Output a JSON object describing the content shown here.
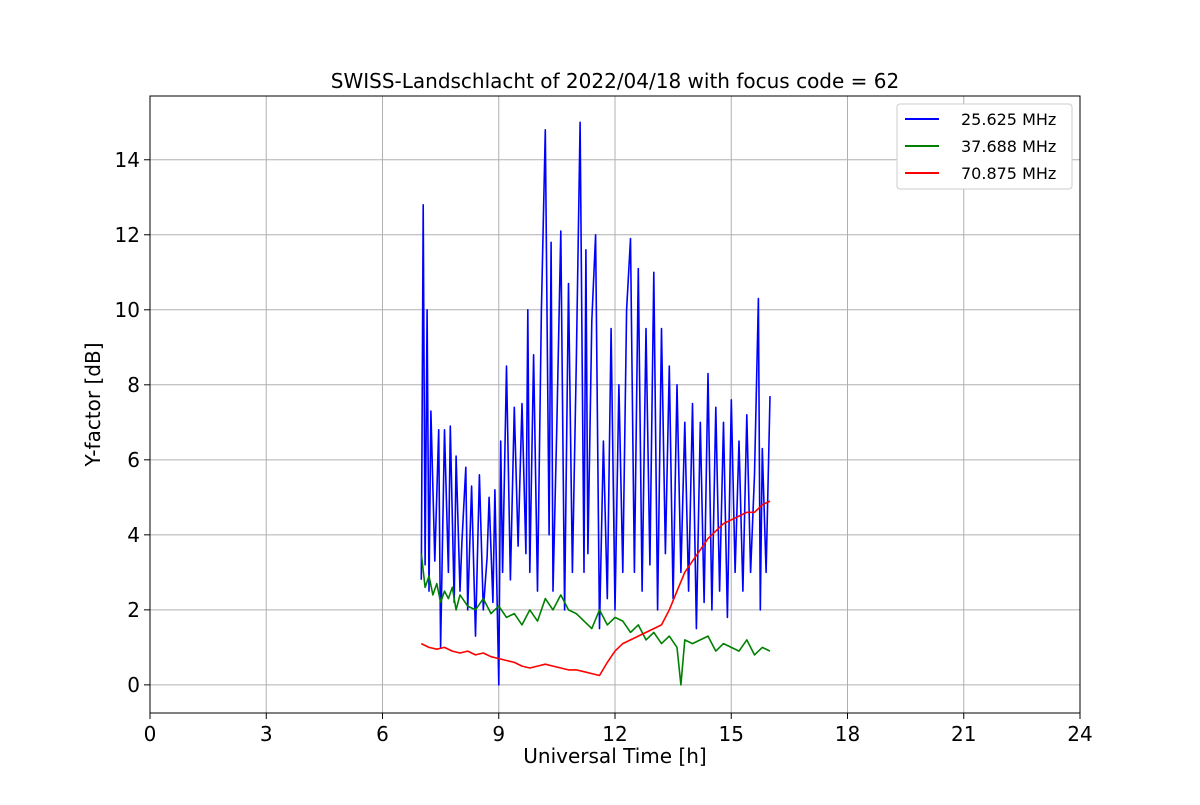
{
  "chart_data": {
    "type": "line",
    "title": "SWISS-Landschlacht of 2022/04/18 with focus code = 62",
    "xlabel": "Universal Time [h]",
    "ylabel": "Y-factor [dB]",
    "xlim": [
      0,
      24
    ],
    "ylim": [
      -0.75,
      15.7
    ],
    "x_ticks": [
      0,
      3,
      6,
      9,
      12,
      15,
      18,
      21,
      24
    ],
    "y_ticks": [
      0,
      2,
      4,
      6,
      8,
      10,
      12,
      14
    ],
    "grid": true,
    "legend_position": "top-right",
    "series": [
      {
        "name": "25.625 MHz",
        "color": "#0000ff",
        "x": [
          7.0,
          7.05,
          7.1,
          7.15,
          7.2,
          7.25,
          7.35,
          7.45,
          7.5,
          7.6,
          7.7,
          7.75,
          7.85,
          7.9,
          8.0,
          8.05,
          8.15,
          8.2,
          8.3,
          8.4,
          8.5,
          8.6,
          8.7,
          8.75,
          8.85,
          8.9,
          9.0,
          9.05,
          9.1,
          9.2,
          9.3,
          9.4,
          9.5,
          9.6,
          9.7,
          9.75,
          9.8,
          9.9,
          10.0,
          10.1,
          10.2,
          10.3,
          10.35,
          10.4,
          10.5,
          10.6,
          10.7,
          10.8,
          10.9,
          11.0,
          11.1,
          11.2,
          11.25,
          11.3,
          11.4,
          11.5,
          11.6,
          11.7,
          11.8,
          11.9,
          12.0,
          12.1,
          12.2,
          12.3,
          12.4,
          12.5,
          12.6,
          12.7,
          12.8,
          12.9,
          13.0,
          13.1,
          13.2,
          13.3,
          13.4,
          13.5,
          13.6,
          13.7,
          13.8,
          13.9,
          14.0,
          14.1,
          14.2,
          14.3,
          14.4,
          14.5,
          14.6,
          14.7,
          14.8,
          14.9,
          15.0,
          15.1,
          15.2,
          15.3,
          15.4,
          15.5,
          15.6,
          15.7,
          15.75,
          15.8,
          15.9,
          16.0
        ],
        "values": [
          2.8,
          12.8,
          3.2,
          10.0,
          2.5,
          7.3,
          3.3,
          6.8,
          1.0,
          6.8,
          3.0,
          6.9,
          2.2,
          6.1,
          2.5,
          3.8,
          5.8,
          2.0,
          5.3,
          1.3,
          5.6,
          2.0,
          3.4,
          5.0,
          2.2,
          5.2,
          0.0,
          6.5,
          3.0,
          8.5,
          2.8,
          7.4,
          3.7,
          7.5,
          3.5,
          10.0,
          3.0,
          8.8,
          2.5,
          10.0,
          14.8,
          4.0,
          11.8,
          2.5,
          7.0,
          12.1,
          2.0,
          10.7,
          3.0,
          8.6,
          15.0,
          3.0,
          11.6,
          3.5,
          9.7,
          12.0,
          1.5,
          6.5,
          2.3,
          9.5,
          2.0,
          8.0,
          3.0,
          10.0,
          11.9,
          3.0,
          11.1,
          2.5,
          9.5,
          3.2,
          11.0,
          2.0,
          9.5,
          3.5,
          8.5,
          2.3,
          8.0,
          3.0,
          7.0,
          2.5,
          7.5,
          1.5,
          7.0,
          2.2,
          8.3,
          2.0,
          7.4,
          2.5,
          7.0,
          1.8,
          7.6,
          3.0,
          6.5,
          2.5,
          7.2,
          3.0,
          5.6,
          10.3,
          2.0,
          6.3,
          3.0,
          7.7
        ]
      },
      {
        "name": "37.688 MHz",
        "color": "#008000",
        "x": [
          7.0,
          7.1,
          7.2,
          7.3,
          7.4,
          7.5,
          7.6,
          7.7,
          7.8,
          7.9,
          8.0,
          8.2,
          8.4,
          8.6,
          8.8,
          9.0,
          9.2,
          9.4,
          9.6,
          9.8,
          10.0,
          10.2,
          10.4,
          10.6,
          10.8,
          11.0,
          11.2,
          11.4,
          11.6,
          11.8,
          12.0,
          12.2,
          12.4,
          12.6,
          12.8,
          13.0,
          13.2,
          13.4,
          13.6,
          13.7,
          13.8,
          14.0,
          14.2,
          14.4,
          14.6,
          14.8,
          15.0,
          15.2,
          15.4,
          15.6,
          15.8,
          16.0
        ],
        "values": [
          3.5,
          2.6,
          2.9,
          2.4,
          2.7,
          2.2,
          2.5,
          2.3,
          2.6,
          2.0,
          2.4,
          2.1,
          2.0,
          2.3,
          1.9,
          2.1,
          1.8,
          1.9,
          1.6,
          2.0,
          1.7,
          2.3,
          2.0,
          2.4,
          2.0,
          1.9,
          1.7,
          1.5,
          2.0,
          1.6,
          1.8,
          1.7,
          1.4,
          1.6,
          1.2,
          1.4,
          1.1,
          1.3,
          1.0,
          0.0,
          1.2,
          1.1,
          1.2,
          1.3,
          0.9,
          1.1,
          1.0,
          0.9,
          1.2,
          0.8,
          1.0,
          0.9
        ]
      },
      {
        "name": "70.875 MHz",
        "color": "#ff0000",
        "x": [
          7.0,
          7.2,
          7.4,
          7.6,
          7.8,
          8.0,
          8.2,
          8.4,
          8.6,
          8.8,
          9.0,
          9.2,
          9.4,
          9.6,
          9.8,
          10.0,
          10.2,
          10.4,
          10.6,
          10.8,
          11.0,
          11.2,
          11.4,
          11.6,
          11.8,
          12.0,
          12.2,
          12.4,
          12.6,
          12.8,
          13.0,
          13.2,
          13.4,
          13.6,
          13.8,
          14.0,
          14.2,
          14.4,
          14.6,
          14.8,
          15.0,
          15.2,
          15.4,
          15.6,
          15.8,
          16.0
        ],
        "values": [
          1.1,
          1.0,
          0.95,
          1.0,
          0.9,
          0.85,
          0.9,
          0.8,
          0.85,
          0.75,
          0.7,
          0.65,
          0.6,
          0.5,
          0.45,
          0.5,
          0.55,
          0.5,
          0.45,
          0.4,
          0.4,
          0.35,
          0.3,
          0.25,
          0.6,
          0.9,
          1.1,
          1.2,
          1.3,
          1.4,
          1.5,
          1.6,
          2.0,
          2.5,
          3.0,
          3.3,
          3.6,
          3.9,
          4.1,
          4.3,
          4.4,
          4.5,
          4.6,
          4.6,
          4.8,
          4.9
        ]
      }
    ]
  }
}
